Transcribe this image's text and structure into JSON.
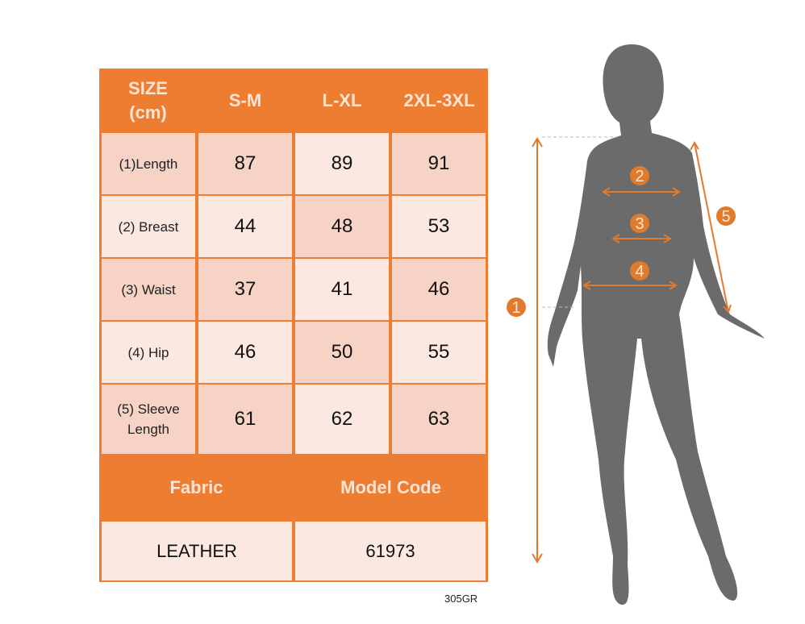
{
  "table": {
    "header": [
      "SIZE\n(cm)",
      "S-M",
      "L-XL",
      "2XL-3XL"
    ],
    "rows": [
      {
        "label": "(1)Length",
        "values": [
          "87",
          "89",
          "91"
        ]
      },
      {
        "label": "(2) Breast",
        "values": [
          "44",
          "48",
          "53"
        ]
      },
      {
        "label": "(3) Waist",
        "values": [
          "37",
          "41",
          "46"
        ]
      },
      {
        "label": "(4) Hip",
        "values": [
          "46",
          "50",
          "55"
        ]
      },
      {
        "label": "(5) Sleeve Length",
        "values": [
          "61",
          "62",
          "63"
        ]
      }
    ],
    "footer_headers": [
      "Fabric",
      "Model Code"
    ],
    "footer_values": [
      "LEATHER",
      "61973"
    ]
  },
  "product_code": "305GR",
  "figure": {
    "markers": [
      "1",
      "2",
      "3",
      "4",
      "5"
    ]
  },
  "colors": {
    "accent": "#ED7D31",
    "silhouette": "#6B6B6B"
  }
}
